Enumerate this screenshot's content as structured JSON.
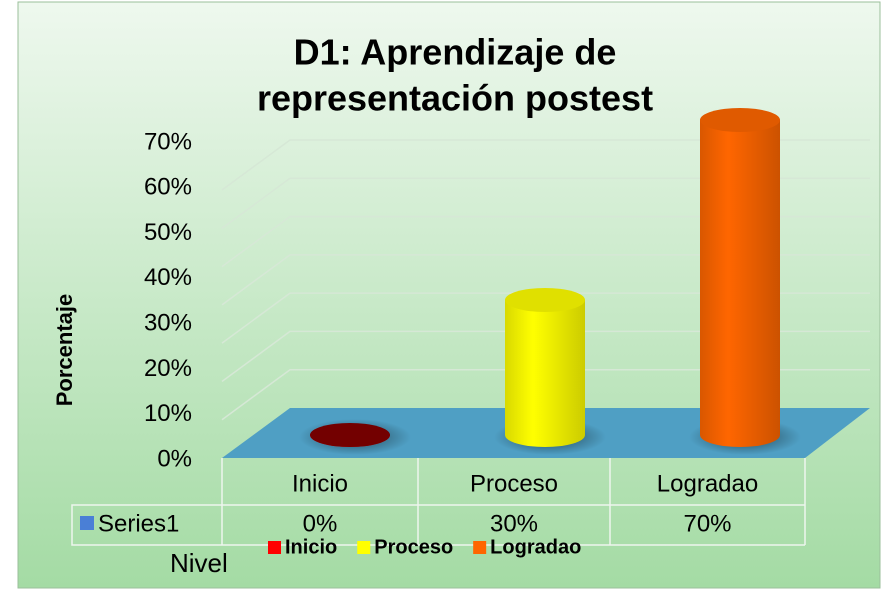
{
  "chart_data": {
    "type": "bar3d",
    "title": "D1: Aprendizaje de",
    "subtitle": "representación  postest",
    "y_label": "Porcentaje",
    "x_label": "Nivel",
    "categories": [
      "Inicio",
      "Proceso",
      "Logradao"
    ],
    "colors": [
      "#ff0000",
      "#ffff00",
      "#ff6600"
    ],
    "series": [
      {
        "name": "Series1",
        "color": "#4a7fd6",
        "values": [
          0,
          30,
          70
        ],
        "value_labels": [
          "0%",
          "30%",
          "70%"
        ]
      }
    ],
    "ylim": [
      0,
      70
    ],
    "yticks": [
      {
        "value": 0,
        "label": "0%"
      },
      {
        "value": 10,
        "label": "10%"
      },
      {
        "value": 20,
        "label": "20%"
      },
      {
        "value": 30,
        "label": "30%"
      },
      {
        "value": 40,
        "label": "40%"
      },
      {
        "value": 50,
        "label": "50%"
      },
      {
        "value": 60,
        "label": "60%"
      },
      {
        "value": 70,
        "label": "70%"
      }
    ],
    "grid": true
  }
}
